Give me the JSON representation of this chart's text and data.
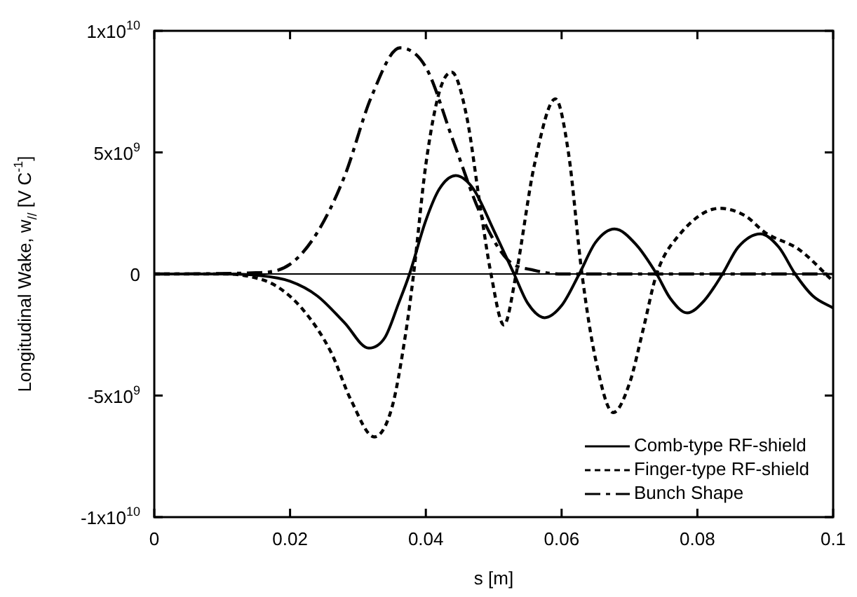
{
  "chart_data": {
    "type": "line",
    "xlabel": "s [m]",
    "ylabel": "Longitudinal Wake, w$_{//}$ [V C$^{-1}$]",
    "xlim": [
      0,
      0.1
    ],
    "xticks": [
      0,
      0.02,
      0.04,
      0.06,
      0.08,
      0.1
    ],
    "ylim": [
      -10000000000.0,
      10000000000.0
    ],
    "yticks": [
      {
        "value": -10000000000.0,
        "label": "-1x10$^{10}$"
      },
      {
        "value": -5000000000.0,
        "label": "-5x10$^{9}$"
      },
      0,
      {
        "value": 5000000000.0,
        "label": "5x10$^{9}$"
      },
      {
        "value": 10000000000.0,
        "label": "1x10$^{10}$"
      }
    ],
    "grid": false,
    "legend": "bottom right",
    "marker": "none",
    "ref_lines": [
      {
        "axis": "y",
        "value": 0,
        "color": "#000000",
        "line_style": "solid"
      }
    ],
    "series": [
      {
        "name": "Comb-type RF-shield",
        "color": "#000000",
        "line_style": "solid",
        "x": [
          0,
          0.01,
          0.015,
          0.02,
          0.024,
          0.028,
          0.0316,
          0.034,
          0.036,
          0.0376,
          0.04,
          0.042,
          0.0444,
          0.047,
          0.05,
          0.053,
          0.055,
          0.0575,
          0.06,
          0.0626,
          0.065,
          0.0678,
          0.071,
          0.074,
          0.076,
          0.0785,
          0.081,
          0.0837,
          0.086,
          0.0893,
          0.092,
          0.0944,
          0.097,
          0.1
        ],
        "values": [
          0,
          0,
          -50000000.0,
          -300000000.0,
          -900000000.0,
          -2000000000.0,
          -3050000000.0,
          -2600000000.0,
          -1200000000.0,
          0,
          2200000000.0,
          3500000000.0,
          4050000000.0,
          3500000000.0,
          1800000000.0,
          0,
          -1200000000.0,
          -1800000000.0,
          -1300000000.0,
          0,
          1300000000.0,
          1850000000.0,
          1200000000.0,
          0,
          -1000000000.0,
          -1600000000.0,
          -1100000000.0,
          0,
          1100000000.0,
          1650000000.0,
          1100000000.0,
          0,
          -900000000.0,
          -1400000000.0
        ]
      },
      {
        "name": "Finger-type RF-shield",
        "color": "#000000",
        "line_style": "dotted",
        "x": [
          0,
          0.01,
          0.014,
          0.018,
          0.022,
          0.026,
          0.029,
          0.0324,
          0.035,
          0.037,
          0.0382,
          0.04,
          0.042,
          0.0438,
          0.046,
          0.048,
          0.0496,
          0.0515,
          0.0533,
          0.056,
          0.0591,
          0.061,
          0.063,
          0.065,
          0.0676,
          0.07,
          0.072,
          0.074,
          0.077,
          0.0833,
          0.087,
          0.09,
          0.095,
          0.1
        ],
        "values": [
          0,
          0,
          -100000000.0,
          -500000000.0,
          -1500000000.0,
          -3200000000.0,
          -5200000000.0,
          -6700000000.0,
          -5500000000.0,
          -2500000000.0,
          0,
          4500000000.0,
          7500000000.0,
          8300000000.0,
          6500000000.0,
          2800000000.0,
          0,
          -2100000000.0,
          0,
          4500000000.0,
          7200000000.0,
          5000000000.0,
          0,
          -3500000000.0,
          -5700000000.0,
          -4500000000.0,
          -2300000000.0,
          0,
          1500000000.0,
          2700000000.0,
          2400000000.0,
          1700000000.0,
          1000000000.0,
          -300000000.0
        ]
      },
      {
        "name": "Bunch Shape",
        "color": "#000000",
        "line_style": "dashed",
        "x": [
          0,
          0.015,
          0.02,
          0.024,
          0.028,
          0.032,
          0.0362,
          0.04,
          0.044,
          0.048,
          0.052,
          0.056,
          0.06,
          0.1
        ],
        "values": [
          0,
          50000000.0,
          400000000.0,
          1700000000.0,
          4000000000.0,
          7300000000.0,
          9300000000.0,
          8500000000.0,
          5500000000.0,
          2500000000.0,
          600000000.0,
          150000000.0,
          0,
          0
        ]
      }
    ]
  }
}
